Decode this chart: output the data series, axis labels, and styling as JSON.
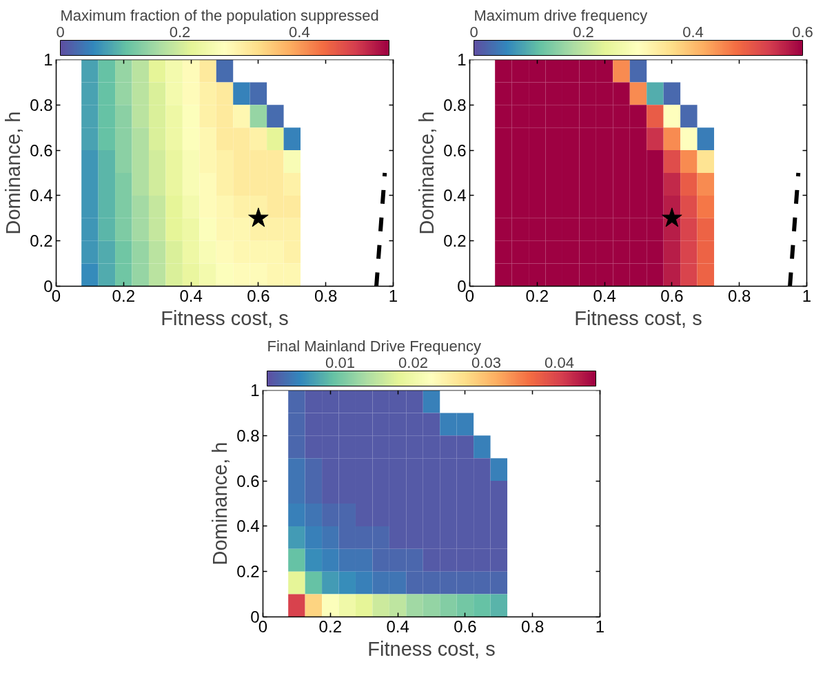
{
  "chart_data": [
    {
      "type": "heatmap",
      "clabel": "Maximum fraction of the population suppressed",
      "xlabel": "Fitness cost, s",
      "ylabel": "Dominance, h",
      "xlim": [
        0,
        1
      ],
      "ylim": [
        0,
        1
      ],
      "xticks": [
        0,
        0.2,
        0.4,
        0.6,
        0.8,
        1
      ],
      "yticks": [
        0,
        0.2,
        0.4,
        0.6,
        0.8,
        1
      ],
      "clim": [
        0,
        0.55
      ],
      "cticks": [
        0,
        0.2,
        0.4
      ],
      "x": [
        0.1,
        0.15,
        0.2,
        0.25,
        0.3,
        0.35,
        0.4,
        0.45,
        0.5,
        0.55,
        0.6,
        0.65,
        0.7
      ],
      "y": [
        0.95,
        0.85,
        0.75,
        0.65,
        0.55,
        0.45,
        0.35,
        0.25,
        0.15,
        0.05
      ],
      "cells": [
        [
          0.08,
          0.11,
          0.15,
          0.18,
          0.22,
          0.25,
          0.28,
          0.31,
          0.03,
          null,
          null,
          null,
          null
        ],
        [
          0.08,
          0.11,
          0.15,
          0.18,
          0.21,
          0.25,
          0.28,
          0.3,
          0.31,
          0.05,
          0.03,
          null,
          null
        ],
        [
          0.08,
          0.11,
          0.14,
          0.18,
          0.21,
          0.24,
          0.27,
          0.3,
          0.31,
          0.29,
          0.15,
          0.03,
          null
        ],
        [
          0.08,
          0.11,
          0.14,
          0.17,
          0.21,
          0.24,
          0.27,
          0.29,
          0.31,
          0.31,
          0.3,
          0.22,
          0.05
        ],
        [
          0.07,
          0.1,
          0.14,
          0.17,
          0.2,
          0.23,
          0.26,
          0.29,
          0.3,
          0.31,
          0.31,
          0.31,
          0.26
        ],
        [
          0.07,
          0.1,
          0.13,
          0.17,
          0.2,
          0.23,
          0.26,
          0.28,
          0.3,
          0.31,
          0.31,
          0.31,
          0.3
        ],
        [
          0.07,
          0.1,
          0.13,
          0.16,
          0.19,
          0.22,
          0.25,
          0.28,
          0.29,
          0.3,
          0.3,
          0.31,
          0.31
        ],
        [
          0.07,
          0.1,
          0.13,
          0.16,
          0.19,
          0.22,
          0.24,
          0.27,
          0.29,
          0.29,
          0.3,
          0.3,
          0.3
        ],
        [
          0.07,
          0.09,
          0.12,
          0.15,
          0.18,
          0.21,
          0.24,
          0.26,
          0.28,
          0.29,
          0.29,
          0.29,
          0.3
        ],
        [
          0.06,
          0.09,
          0.12,
          0.15,
          0.18,
          0.21,
          0.23,
          0.25,
          0.27,
          0.28,
          0.28,
          0.29,
          0.29
        ]
      ],
      "series": [
        {
          "type": "scatter",
          "marker": "star",
          "color": "#000000",
          "x": [
            0.6
          ],
          "values": [
            0.3
          ]
        },
        {
          "type": "line",
          "line_style": "dashed",
          "color": "#000000",
          "x": [
            0.95,
            0.975
          ],
          "values": [
            0,
            0.5
          ]
        }
      ]
    },
    {
      "type": "heatmap",
      "clabel": "Maximum drive frequency",
      "xlabel": "Fitness cost, s",
      "ylabel": "Dominance, h",
      "xlim": [
        0,
        1
      ],
      "ylim": [
        0,
        1
      ],
      "xticks": [
        0,
        0.2,
        0.4,
        0.6,
        0.8,
        1
      ],
      "yticks": [
        0,
        0.2,
        0.4,
        0.6,
        0.8,
        1
      ],
      "clim": [
        0,
        0.6
      ],
      "cticks": [
        0,
        0.2,
        0.4,
        0.6
      ],
      "x": [
        0.1,
        0.15,
        0.2,
        0.25,
        0.3,
        0.35,
        0.4,
        0.45,
        0.5,
        0.55,
        0.6,
        0.65,
        0.7
      ],
      "y": [
        0.95,
        0.85,
        0.75,
        0.65,
        0.55,
        0.45,
        0.35,
        0.25,
        0.15,
        0.05
      ],
      "cells": [
        [
          0.6,
          0.6,
          0.6,
          0.6,
          0.6,
          0.6,
          0.6,
          0.45,
          0.03,
          null,
          null,
          null,
          null
        ],
        [
          0.6,
          0.6,
          0.6,
          0.6,
          0.6,
          0.6,
          0.6,
          0.6,
          0.45,
          0.1,
          0.03,
          null,
          null
        ],
        [
          0.6,
          0.6,
          0.6,
          0.6,
          0.6,
          0.6,
          0.6,
          0.6,
          0.6,
          0.5,
          0.3,
          0.03,
          null
        ],
        [
          0.6,
          0.6,
          0.6,
          0.6,
          0.6,
          0.6,
          0.6,
          0.6,
          0.6,
          0.55,
          0.45,
          0.3,
          0.05
        ],
        [
          0.6,
          0.6,
          0.6,
          0.6,
          0.6,
          0.6,
          0.6,
          0.6,
          0.6,
          0.6,
          0.52,
          0.45,
          0.35
        ],
        [
          0.6,
          0.6,
          0.6,
          0.6,
          0.6,
          0.6,
          0.6,
          0.6,
          0.6,
          0.6,
          0.56,
          0.5,
          0.45
        ],
        [
          0.6,
          0.6,
          0.6,
          0.6,
          0.6,
          0.6,
          0.6,
          0.6,
          0.6,
          0.6,
          0.57,
          0.52,
          0.47
        ],
        [
          0.6,
          0.6,
          0.6,
          0.6,
          0.6,
          0.6,
          0.6,
          0.6,
          0.6,
          0.6,
          0.57,
          0.53,
          0.49
        ],
        [
          0.6,
          0.6,
          0.6,
          0.6,
          0.6,
          0.6,
          0.6,
          0.6,
          0.6,
          0.6,
          0.57,
          0.53,
          0.49
        ],
        [
          0.6,
          0.6,
          0.6,
          0.6,
          0.6,
          0.6,
          0.6,
          0.6,
          0.6,
          0.6,
          0.57,
          0.53,
          0.49
        ]
      ],
      "series": [
        {
          "type": "scatter",
          "marker": "star",
          "color": "#000000",
          "x": [
            0.6
          ],
          "values": [
            0.3
          ]
        },
        {
          "type": "line",
          "line_style": "dashed",
          "color": "#000000",
          "x": [
            0.95,
            0.975
          ],
          "values": [
            0,
            0.5
          ]
        }
      ]
    },
    {
      "type": "heatmap",
      "clabel": "Final Mainland Drive Frequency",
      "xlabel": "Fitness cost, s",
      "ylabel": "Dominance, h",
      "xlim": [
        0,
        1
      ],
      "ylim": [
        0,
        1
      ],
      "xticks": [
        0,
        0.2,
        0.4,
        0.6,
        0.8,
        1
      ],
      "yticks": [
        0,
        0.2,
        0.4,
        0.6,
        0.8,
        1
      ],
      "clim": [
        0,
        0.045
      ],
      "cticks": [
        0.01,
        0.02,
        0.03,
        0.04
      ],
      "x": [
        0.1,
        0.15,
        0.2,
        0.25,
        0.3,
        0.35,
        0.4,
        0.45,
        0.5,
        0.55,
        0.6,
        0.65,
        0.7
      ],
      "y": [
        0.95,
        0.85,
        0.75,
        0.65,
        0.55,
        0.45,
        0.35,
        0.25,
        0.15,
        0.05
      ],
      "cells": [
        [
          0.002,
          0.001,
          0.001,
          0.001,
          0.001,
          0.001,
          0.001,
          0.001,
          0.004,
          null,
          null,
          null,
          null
        ],
        [
          0.002,
          0.001,
          0.001,
          0.001,
          0.001,
          0.001,
          0.001,
          0.001,
          0.001,
          0.004,
          0.004,
          null,
          null
        ],
        [
          0.002,
          0.001,
          0.001,
          0.001,
          0.001,
          0.001,
          0.001,
          0.001,
          0.001,
          0.001,
          0.001,
          0.004,
          null
        ],
        [
          0.003,
          0.002,
          0.001,
          0.001,
          0.001,
          0.001,
          0.001,
          0.001,
          0.001,
          0.001,
          0.001,
          0.001,
          0.004
        ],
        [
          0.003,
          0.002,
          0.001,
          0.001,
          0.001,
          0.001,
          0.001,
          0.001,
          0.001,
          0.001,
          0.001,
          0.001,
          0.001
        ],
        [
          0.004,
          0.003,
          0.002,
          0.002,
          0.001,
          0.001,
          0.001,
          0.001,
          0.001,
          0.001,
          0.001,
          0.001,
          0.001
        ],
        [
          0.006,
          0.004,
          0.003,
          0.002,
          0.002,
          0.002,
          0.001,
          0.001,
          0.001,
          0.001,
          0.001,
          0.001,
          0.001
        ],
        [
          0.009,
          0.005,
          0.004,
          0.003,
          0.003,
          0.002,
          0.002,
          0.002,
          0.001,
          0.001,
          0.001,
          0.001,
          0.001
        ],
        [
          0.018,
          0.009,
          0.006,
          0.005,
          0.004,
          0.003,
          0.003,
          0.002,
          0.002,
          0.002,
          0.002,
          0.002,
          0.002
        ],
        [
          0.04,
          0.028,
          0.022,
          0.02,
          0.018,
          0.016,
          0.015,
          0.013,
          0.012,
          0.011,
          0.01,
          0.009,
          0.008
        ]
      ]
    }
  ]
}
